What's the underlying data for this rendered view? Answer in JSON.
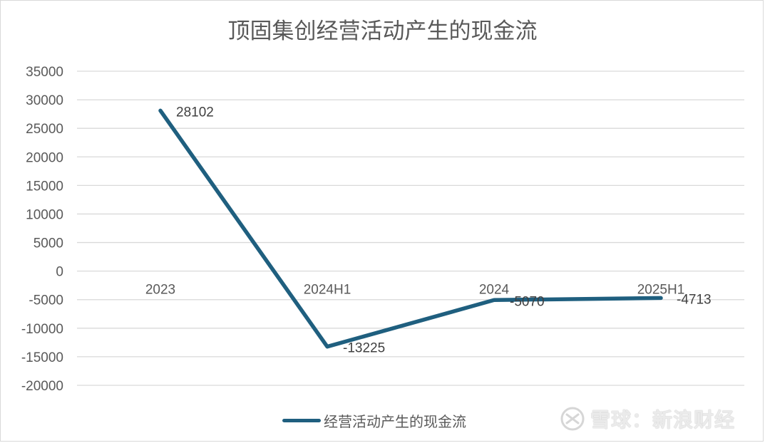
{
  "chart_data": {
    "type": "line",
    "title": "顶固集创经营活动产生的现金流",
    "categories": [
      "2023",
      "2024H1",
      "2024",
      "2025H1"
    ],
    "series": [
      {
        "name": "经营活动产生的现金流",
        "values": [
          28102,
          -13225,
          -5070,
          -4713
        ],
        "color": "#1f5f7f"
      }
    ],
    "data_labels": [
      "28102",
      "-13225",
      "-5070",
      "-4713"
    ],
    "ylim": [
      -20000,
      35000
    ],
    "yticks": [
      35000,
      30000,
      25000,
      20000,
      15000,
      10000,
      5000,
      0,
      -5000,
      -10000,
      -15000,
      -20000
    ],
    "ytick_labels": [
      "35000",
      "30000",
      "25000",
      "20000",
      "15000",
      "10000",
      "5000",
      "0",
      "-5000",
      "-10000",
      "-15000",
      "-20000"
    ],
    "grid": true,
    "legend_position": "bottom",
    "gridline_color": "#d9d9d9"
  },
  "watermark": {
    "text": "雪球：新浪财经",
    "logo": "snowball-logo-icon"
  }
}
